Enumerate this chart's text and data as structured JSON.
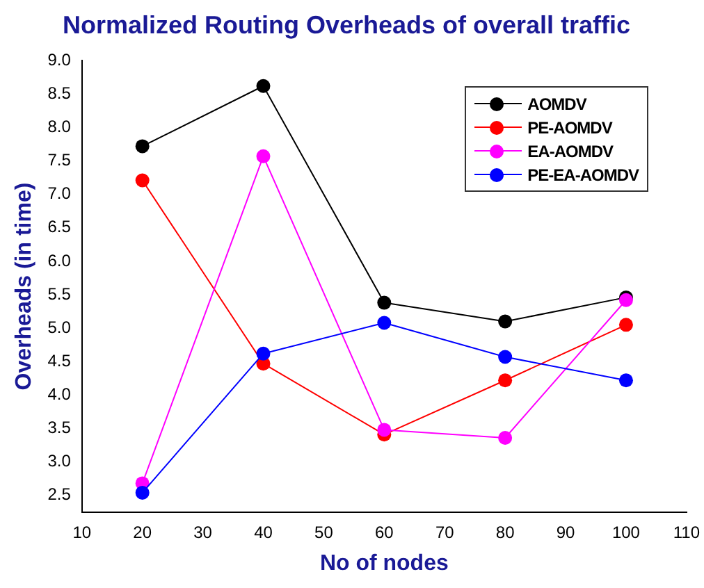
{
  "chart_data": {
    "type": "line",
    "title": "Normalized Routing Overheads of overall traffic",
    "xlabel": "No of nodes",
    "ylabel": "Overheads (in time)",
    "x": [
      20,
      40,
      60,
      80,
      100
    ],
    "series": [
      {
        "name": "AOMDV",
        "color": "#000000",
        "values": [
          7.72,
          8.62,
          5.38,
          5.1,
          5.46
        ]
      },
      {
        "name": "PE-AOMDV",
        "color": "#ff0000",
        "values": [
          7.21,
          4.47,
          3.41,
          4.22,
          5.05
        ]
      },
      {
        "name": "EA-AOMDV",
        "color": "#ff00ff",
        "values": [
          2.68,
          7.57,
          3.48,
          3.36,
          5.42
        ]
      },
      {
        "name": "PE-EA-AOMDV",
        "color": "#0000ff",
        "values": [
          2.54,
          4.62,
          5.08,
          4.57,
          4.22
        ]
      }
    ],
    "xlim": [
      10,
      110
    ],
    "xticks": [
      10,
      20,
      30,
      40,
      50,
      60,
      70,
      80,
      90,
      100,
      110
    ],
    "ylim": [
      2.25,
      9.0
    ],
    "yticks": [
      2.5,
      {
        "value": 3,
        "label": "3.0"
      },
      3.5,
      {
        "value": 4,
        "label": "4.0"
      },
      4.5,
      {
        "value": 5,
        "label": "5.0"
      },
      5.5,
      {
        "value": 6,
        "label": "6.0"
      },
      6.5,
      {
        "value": 7,
        "label": "7.0"
      },
      7.5,
      {
        "value": 8,
        "label": "8.0"
      },
      8.5,
      {
        "value": 9,
        "label": "9.0"
      }
    ],
    "grid": false,
    "legend": "top right",
    "marker": "circle",
    "line_style": "solid"
  }
}
